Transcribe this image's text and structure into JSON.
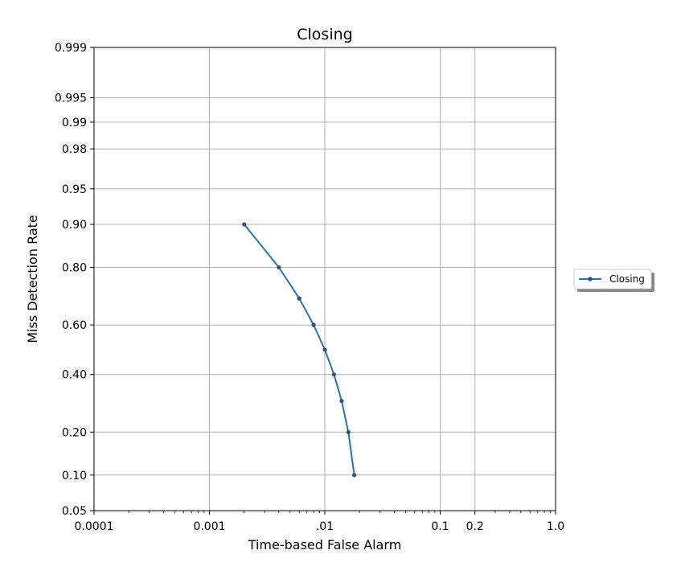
{
  "chart_data": {
    "type": "line",
    "title": "Closing",
    "xlabel": "Time-based False Alarm",
    "ylabel": "Miss Detection Rate",
    "x_scale": "log",
    "y_scale": "probit",
    "xlim": [
      0.0001,
      1.0
    ],
    "ylim": [
      0.05,
      0.999
    ],
    "x_ticks": [
      {
        "value": 0.0001,
        "label": "0.0001"
      },
      {
        "value": 0.001,
        "label": "0.001"
      },
      {
        "value": 0.01,
        "label": ".01"
      },
      {
        "value": 0.1,
        "label": "0.1"
      },
      {
        "value": 0.2,
        "label": "0.2"
      },
      {
        "value": 1.0,
        "label": "1.0"
      }
    ],
    "y_ticks": [
      {
        "value": 0.05,
        "label": "0.05"
      },
      {
        "value": 0.1,
        "label": "0.10"
      },
      {
        "value": 0.2,
        "label": "0.20"
      },
      {
        "value": 0.4,
        "label": "0.40"
      },
      {
        "value": 0.6,
        "label": "0.60"
      },
      {
        "value": 0.8,
        "label": "0.80"
      },
      {
        "value": 0.9,
        "label": "0.90"
      },
      {
        "value": 0.95,
        "label": "0.95"
      },
      {
        "value": 0.98,
        "label": "0.98"
      },
      {
        "value": 0.99,
        "label": "0.99"
      },
      {
        "value": 0.995,
        "label": "0.995"
      },
      {
        "value": 0.999,
        "label": "0.999"
      }
    ],
    "grid": true,
    "legend_position": "right",
    "series": [
      {
        "name": "Closing",
        "color": "#1f77b4",
        "marker_color": "#3b4a8c",
        "x": [
          0.002,
          0.004,
          0.006,
          0.008,
          0.01,
          0.012,
          0.014,
          0.016,
          0.018
        ],
        "y": [
          0.9,
          0.8,
          0.7,
          0.6,
          0.5,
          0.4,
          0.3,
          0.2,
          0.1
        ]
      }
    ]
  }
}
